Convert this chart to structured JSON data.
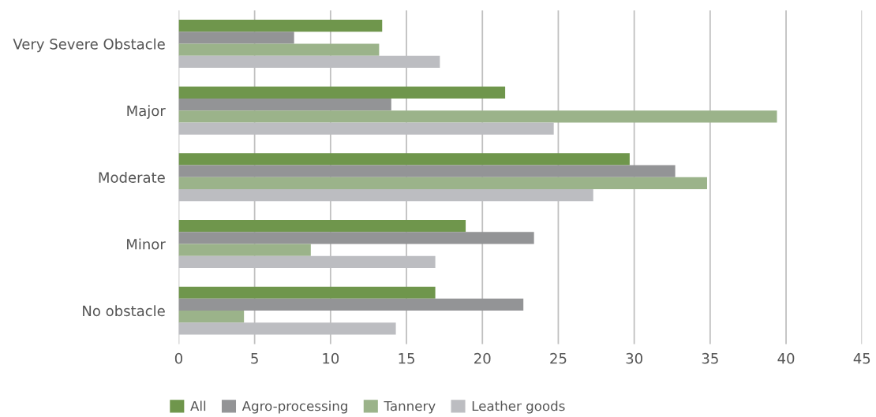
{
  "chart_data": {
    "type": "bar",
    "orientation": "horizontal",
    "categories": [
      "Very Severe Obstacle",
      "Major",
      "Moderate",
      "Minor",
      "No obstacle"
    ],
    "series": [
      {
        "name": "All",
        "color": "#6f964c",
        "values": [
          13.4,
          21.5,
          29.7,
          18.9,
          16.9
        ]
      },
      {
        "name": "Agro-processing",
        "color": "#939496",
        "values": [
          7.6,
          14.0,
          32.7,
          23.4,
          22.7
        ]
      },
      {
        "name": "Tannery",
        "color": "#9bb38a",
        "values": [
          13.2,
          39.4,
          34.8,
          8.7,
          4.3
        ]
      },
      {
        "name": "Leather goods",
        "color": "#bcbdc1",
        "values": [
          17.2,
          24.7,
          27.3,
          16.9,
          14.3
        ]
      }
    ],
    "xlim": [
      0,
      45
    ],
    "xticks": [
      0,
      5,
      10,
      15,
      20,
      25,
      30,
      35,
      40,
      45
    ],
    "grid": "x",
    "legend": "bottom"
  }
}
